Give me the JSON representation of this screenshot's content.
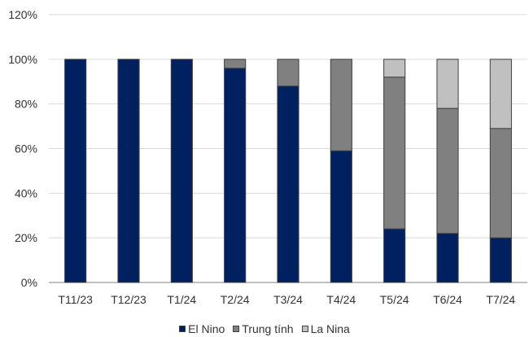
{
  "chart_data": {
    "type": "bar",
    "stacked": true,
    "title": "",
    "xlabel": "",
    "ylabel": "",
    "categories": [
      "T11/23",
      "T12/23",
      "T1/24",
      "T2/24",
      "T3/24",
      "T4/24",
      "T5/24",
      "T6/24",
      "T7/24"
    ],
    "series": [
      {
        "name": "El Nino",
        "color": "#002060",
        "values": [
          100,
          100,
          100,
          96,
          88,
          59,
          24,
          22,
          20
        ]
      },
      {
        "name": "Trung tính",
        "color": "#808080",
        "values": [
          0,
          0,
          0,
          4,
          12,
          41,
          68,
          56,
          49
        ]
      },
      {
        "name": "La Nina",
        "color": "#C0C0C0",
        "values": [
          0,
          0,
          0,
          0,
          0,
          0,
          8,
          22,
          31
        ]
      }
    ],
    "ylim": [
      0,
      120
    ],
    "yticks": [
      "0%",
      "20%",
      "40%",
      "60%",
      "80%",
      "100%",
      "120%"
    ],
    "grid": true,
    "legend_position": "bottom"
  }
}
